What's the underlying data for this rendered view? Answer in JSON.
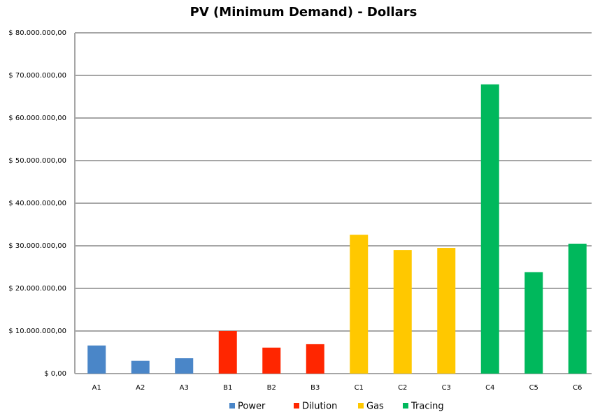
{
  "chart_data": {
    "type": "bar",
    "title": "PV  (Minimum Demand) - Dollars",
    "categories": [
      "A1",
      "A2",
      "A3",
      "B1",
      "B2",
      "B3",
      "C1",
      "C2",
      "C3",
      "C4",
      "C5",
      "C6"
    ],
    "series": [
      {
        "name": "Power",
        "color": "#4a86c8",
        "values": [
          6600000,
          3000000,
          3600000,
          null,
          null,
          null,
          null,
          null,
          null,
          null,
          null,
          null
        ]
      },
      {
        "name": "Dilution",
        "color": "#ff2600",
        "values": [
          null,
          null,
          null,
          10000000,
          6100000,
          6900000,
          null,
          null,
          null,
          null,
          null,
          null
        ]
      },
      {
        "name": "Gas",
        "color": "#ffc800",
        "values": [
          null,
          null,
          null,
          null,
          null,
          null,
          32600000,
          29000000,
          29500000,
          null,
          null,
          null
        ]
      },
      {
        "name": "Tracing",
        "color": "#00b85c",
        "values": [
          null,
          null,
          null,
          null,
          null,
          null,
          null,
          null,
          null,
          67900000,
          23800000,
          30500000
        ]
      }
    ],
    "ylim": [
      0,
      80000000
    ],
    "yticks": [
      {
        "value": 0,
        "label": "$ 0,00"
      },
      {
        "value": 10000000,
        "label": "$ 10.000.000,00"
      },
      {
        "value": 20000000,
        "label": "$ 20.000.000,00"
      },
      {
        "value": 30000000,
        "label": "$ 30.000.000,00"
      },
      {
        "value": 40000000,
        "label": "$ 40.000.000,00"
      },
      {
        "value": 50000000,
        "label": "$ 50.000.000,00"
      },
      {
        "value": 60000000,
        "label": "$ 60.000.000,00"
      },
      {
        "value": 70000000,
        "label": "$ 70.000.000,00"
      },
      {
        "value": 80000000,
        "label": "$ 80.000.000,00"
      }
    ],
    "grid": true,
    "legend": "bottom"
  }
}
